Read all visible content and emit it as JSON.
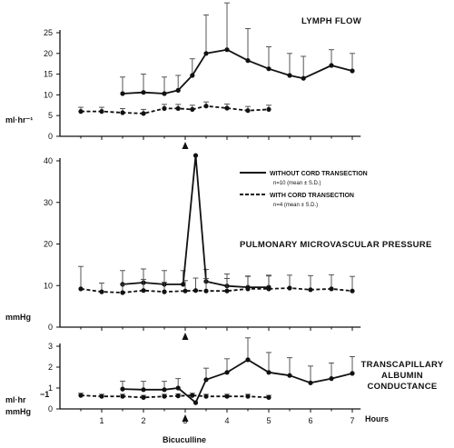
{
  "chart_data": [
    {
      "type": "line",
      "title": "LYMPH FLOW",
      "ylabel": "ml·hr⁻¹",
      "ylim": [
        0,
        25
      ],
      "yticks": [
        "25",
        "20",
        "15",
        "10",
        "5",
        "0"
      ],
      "series": [
        {
          "style": "solid",
          "x": [
            1.5,
            2.0,
            2.5,
            2.83,
            3.17,
            3.5,
            4.0,
            4.5,
            5.0,
            5.5,
            5.83,
            6.5,
            7.0
          ],
          "y": [
            10.3,
            10.6,
            10.3,
            11.1,
            14.7,
            20.0,
            20.9,
            18.3,
            16.3,
            14.7,
            14.0,
            17.1,
            15.8
          ],
          "err": [
            4.0,
            4.4,
            4.0,
            3.6,
            4.0,
            9.3,
            11.3,
            7.7,
            5.3,
            5.3,
            5.3,
            3.8,
            4.2
          ]
        },
        {
          "style": "dashed",
          "x": [
            0.5,
            1.0,
            1.5,
            2.0,
            2.5,
            2.83,
            3.17,
            3.5,
            4.0,
            4.5,
            5.0
          ],
          "y": [
            6.0,
            6.0,
            5.7,
            5.5,
            6.7,
            6.7,
            6.5,
            7.3,
            6.8,
            6.2,
            6.5
          ],
          "err": [
            1.0,
            1.0,
            1.0,
            1.0,
            1.0,
            1.0,
            1.0,
            1.0,
            1.0,
            1.0,
            1.0
          ]
        }
      ]
    },
    {
      "type": "line",
      "title": "PULMONARY MICROVASCULAR PRESSURE",
      "ylabel": "mmHg",
      "ylim": [
        0,
        40
      ],
      "yticks": [
        "40",
        "30",
        "20",
        "10",
        "0"
      ],
      "legend": {
        "placement": "top-right",
        "entries": [
          {
            "style": "solid",
            "label": "WITHOUT CORD TRANSECTION",
            "sub": "n=10 (mean ± S.D.)"
          },
          {
            "style": "dashed",
            "label": "WITH CORD TRANSECTION",
            "sub": "n=4 (mean ± S.D.)"
          }
        ]
      },
      "series": [
        {
          "style": "solid",
          "x": [
            1.5,
            2.0,
            2.5,
            2.95,
            3.25,
            3.5,
            4.0,
            4.5,
            5.0
          ],
          "y": [
            10.3,
            10.7,
            10.3,
            10.3,
            41.3,
            11.0,
            9.9,
            9.6,
            9.6
          ],
          "err": [
            3.3,
            3.3,
            3.3,
            3.3,
            0,
            2.9,
            2.9,
            2.7,
            2.9
          ]
        },
        {
          "style": "dashed",
          "x": [
            0.5,
            1.0,
            1.5,
            2.0,
            2.5,
            3.0,
            3.25,
            3.5,
            4.0,
            4.5,
            5.0,
            5.5,
            6.0,
            6.5,
            7.0
          ],
          "y": [
            9.2,
            8.5,
            8.3,
            8.8,
            8.5,
            8.7,
            8.8,
            8.7,
            8.7,
            9.2,
            9.2,
            9.4,
            9.0,
            9.2,
            8.7
          ],
          "err": [
            5.4,
            2.1,
            2.0,
            2.7,
            2.3,
            2.5,
            3.0,
            3.0,
            3.0,
            3.0,
            3.1,
            3.1,
            3.4,
            3.4,
            3.5
          ]
        }
      ]
    },
    {
      "type": "line",
      "title": "TRANSCAPILLARY ALBUMIN CONDUCTANCE",
      "title_lines": [
        "TRANSCAPILLARY",
        "ALBUMIN",
        "CONDUCTANCE"
      ],
      "ylabel": "ml·hr⁻¹ mmHg⁻¹",
      "ylabel_lines": [
        "ml·hr",
        "−1",
        "mmHg"
      ],
      "ylim": [
        0,
        3
      ],
      "yticks": [
        "3",
        "2",
        "1",
        "0"
      ],
      "xlabel": "Hours",
      "xticks": [
        "1",
        "2",
        "3",
        "4",
        "5",
        "6",
        "7"
      ],
      "xlim": [
        0,
        7.2
      ],
      "annotation": "Bicuculline",
      "event_x": 3.0,
      "series": [
        {
          "style": "solid",
          "x": [
            1.5,
            2.0,
            2.5,
            2.83,
            3.25,
            3.5,
            4.0,
            4.5,
            5.0,
            5.5,
            6.0,
            6.5,
            7.0
          ],
          "y": [
            0.95,
            0.92,
            0.92,
            1.0,
            0.3,
            1.4,
            1.75,
            2.35,
            1.75,
            1.6,
            1.25,
            1.45,
            1.7
          ],
          "err": [
            0.38,
            0.4,
            0.4,
            0.45,
            0,
            0.55,
            0.65,
            1.05,
            0.95,
            0.85,
            0.8,
            0.75,
            0.8
          ]
        },
        {
          "style": "dashed",
          "x": [
            0.5,
            1.0,
            1.5,
            2.0,
            2.5,
            2.83,
            3.17,
            3.5,
            4.0,
            4.5,
            5.0
          ],
          "y": [
            0.65,
            0.6,
            0.6,
            0.55,
            0.6,
            0.62,
            0.65,
            0.6,
            0.6,
            0.6,
            0.55
          ],
          "err": [
            0.1,
            0.1,
            0.1,
            0.1,
            0.1,
            0.1,
            0.1,
            0.1,
            0.1,
            0.1,
            0.1
          ]
        }
      ]
    }
  ]
}
